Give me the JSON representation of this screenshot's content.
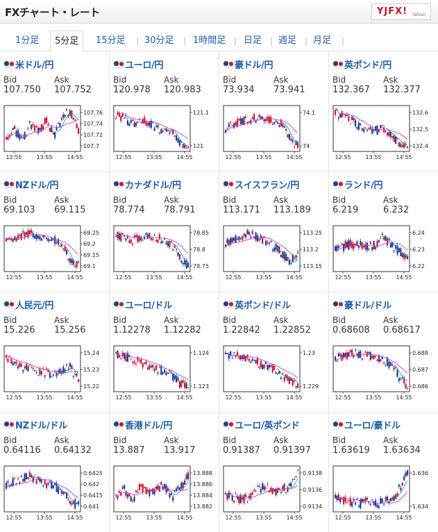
{
  "title": "FXチャート・レート",
  "logo": {
    "text": "YJFX!",
    "small": "Yahoo!"
  },
  "tabs": [
    {
      "label": "1分足",
      "active": false
    },
    {
      "label": "5分足",
      "active": true
    },
    {
      "label": "15分足",
      "active": false
    },
    {
      "label": "30分足",
      "active": false
    },
    {
      "label": "1時間足",
      "active": false
    },
    {
      "label": "日足",
      "active": false
    },
    {
      "label": "週足",
      "active": false
    },
    {
      "label": "月足",
      "active": false
    }
  ],
  "bid_label": "Bid",
  "ask_label": "Ask",
  "time_labels": [
    "12:55",
    "13:55",
    "14:55"
  ],
  "colors": {
    "link": "#1a5ea8",
    "up": "#d1142d",
    "down": "#1a3d9c",
    "ma_pink": "#c83cc8",
    "ma_teal": "#20a0b0"
  },
  "pairs": [
    {
      "name": "米ドル/円",
      "bid": "107.750",
      "ask": "107.752",
      "ylabels": [
        "107.76",
        "107.74",
        "107.72",
        "107.7"
      ]
    },
    {
      "name": "ユーロ/円",
      "bid": "120.978",
      "ask": "120.983",
      "ylabels": [
        "121.1",
        "121"
      ]
    },
    {
      "name": "豪ドル/円",
      "bid": "73.934",
      "ask": "73.941",
      "ylabels": [
        "74.1",
        "74"
      ]
    },
    {
      "name": "英ポンド/円",
      "bid": "132.367",
      "ask": "132.377",
      "ylabels": [
        "132.6",
        "132.5",
        "132.4"
      ]
    },
    {
      "name": "NZドル/円",
      "bid": "69.103",
      "ask": "69.115",
      "ylabels": [
        "69.25",
        "69.2",
        "69.15",
        "69.1"
      ]
    },
    {
      "name": "カナダドル/円",
      "bid": "78.774",
      "ask": "78.791",
      "ylabels": [
        "78.85",
        "78.8",
        "78.75"
      ]
    },
    {
      "name": "スイスフラン/円",
      "bid": "113.171",
      "ask": "113.189",
      "ylabels": [
        "113.25",
        "113.2",
        "113.15"
      ]
    },
    {
      "name": "ランド/円",
      "bid": "6.219",
      "ask": "6.232",
      "ylabels": [
        "6.24",
        "6.23",
        "6.22"
      ]
    },
    {
      "name": "人民元/円",
      "bid": "15.226",
      "ask": "15.256",
      "ylabels": [
        "15.24",
        "15.23",
        "15.22"
      ]
    },
    {
      "name": "ユーロ/ドル",
      "bid": "1.12278",
      "ask": "1.12282",
      "ylabels": [
        "1.124",
        "1.123"
      ]
    },
    {
      "name": "英ポンド/ドル",
      "bid": "1.22842",
      "ask": "1.22852",
      "ylabels": [
        "1.23",
        "1.229"
      ]
    },
    {
      "name": "豪ドル/ドル",
      "bid": "0.68608",
      "ask": "0.68617",
      "ylabels": [
        "0.688",
        "0.687",
        "0.686"
      ]
    },
    {
      "name": "NZドル/ドル",
      "bid": "0.64116",
      "ask": "0.64132",
      "ylabels": [
        "0.6425",
        "0.642",
        "0.6415",
        "0.641"
      ]
    },
    {
      "name": "香港ドル/円",
      "bid": "13.887",
      "ask": "13.917",
      "ylabels": [
        "13.888",
        "13.886",
        "13.884",
        "13.882"
      ]
    },
    {
      "name": "ユーロ/英ポンド",
      "bid": "0.91387",
      "ask": "0.91397",
      "ylabels": [
        "0.9138",
        "0.9136",
        "0.9134"
      ]
    },
    {
      "name": "ユーロ/豪ドル",
      "bid": "1.63619",
      "ask": "1.63634",
      "ylabels": [
        "1.636",
        "1.634"
      ]
    }
  ]
}
